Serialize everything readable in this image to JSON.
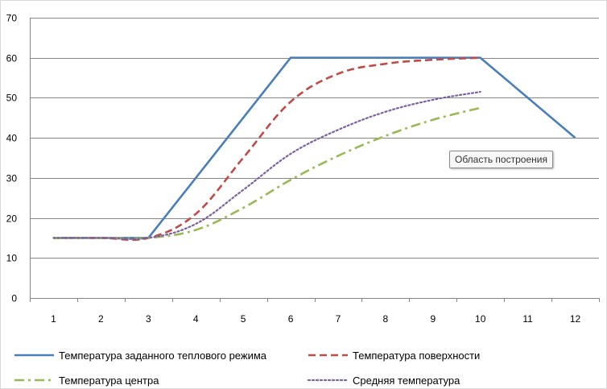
{
  "chart_data": {
    "type": "line",
    "x": [
      1,
      2,
      3,
      4,
      5,
      6,
      7,
      8,
      9,
      10,
      11,
      12
    ],
    "ylim": [
      0,
      70
    ],
    "yticks": [
      0,
      10,
      20,
      30,
      40,
      50,
      60,
      70
    ],
    "grid": true,
    "legend_position": "bottom",
    "series": [
      {
        "name": "Температура заданного теплового режима",
        "color": "#4a7ebb",
        "style": "solid",
        "values": [
          15,
          15,
          15,
          30,
          45,
          60,
          60,
          60,
          60,
          60,
          50,
          40
        ]
      },
      {
        "name": "Температура поверхности",
        "color": "#be4b48",
        "style": "dash",
        "values": [
          15,
          15,
          15,
          21,
          35,
          49,
          56,
          58.5,
          59.5,
          60,
          null,
          null
        ]
      },
      {
        "name": "Температура центра",
        "color": "#98b954",
        "style": "dashdot",
        "values": [
          15,
          15,
          15,
          17,
          22.5,
          29.5,
          35.5,
          40.5,
          44.5,
          47.5,
          null,
          null
        ]
      },
      {
        "name": "Средняя температура",
        "color": "#7d60a0",
        "style": "dot",
        "values": [
          15,
          15,
          15,
          18.5,
          27,
          36,
          42,
          46.5,
          49.5,
          51.5,
          null,
          null
        ]
      }
    ]
  },
  "tooltip": "Область построения"
}
